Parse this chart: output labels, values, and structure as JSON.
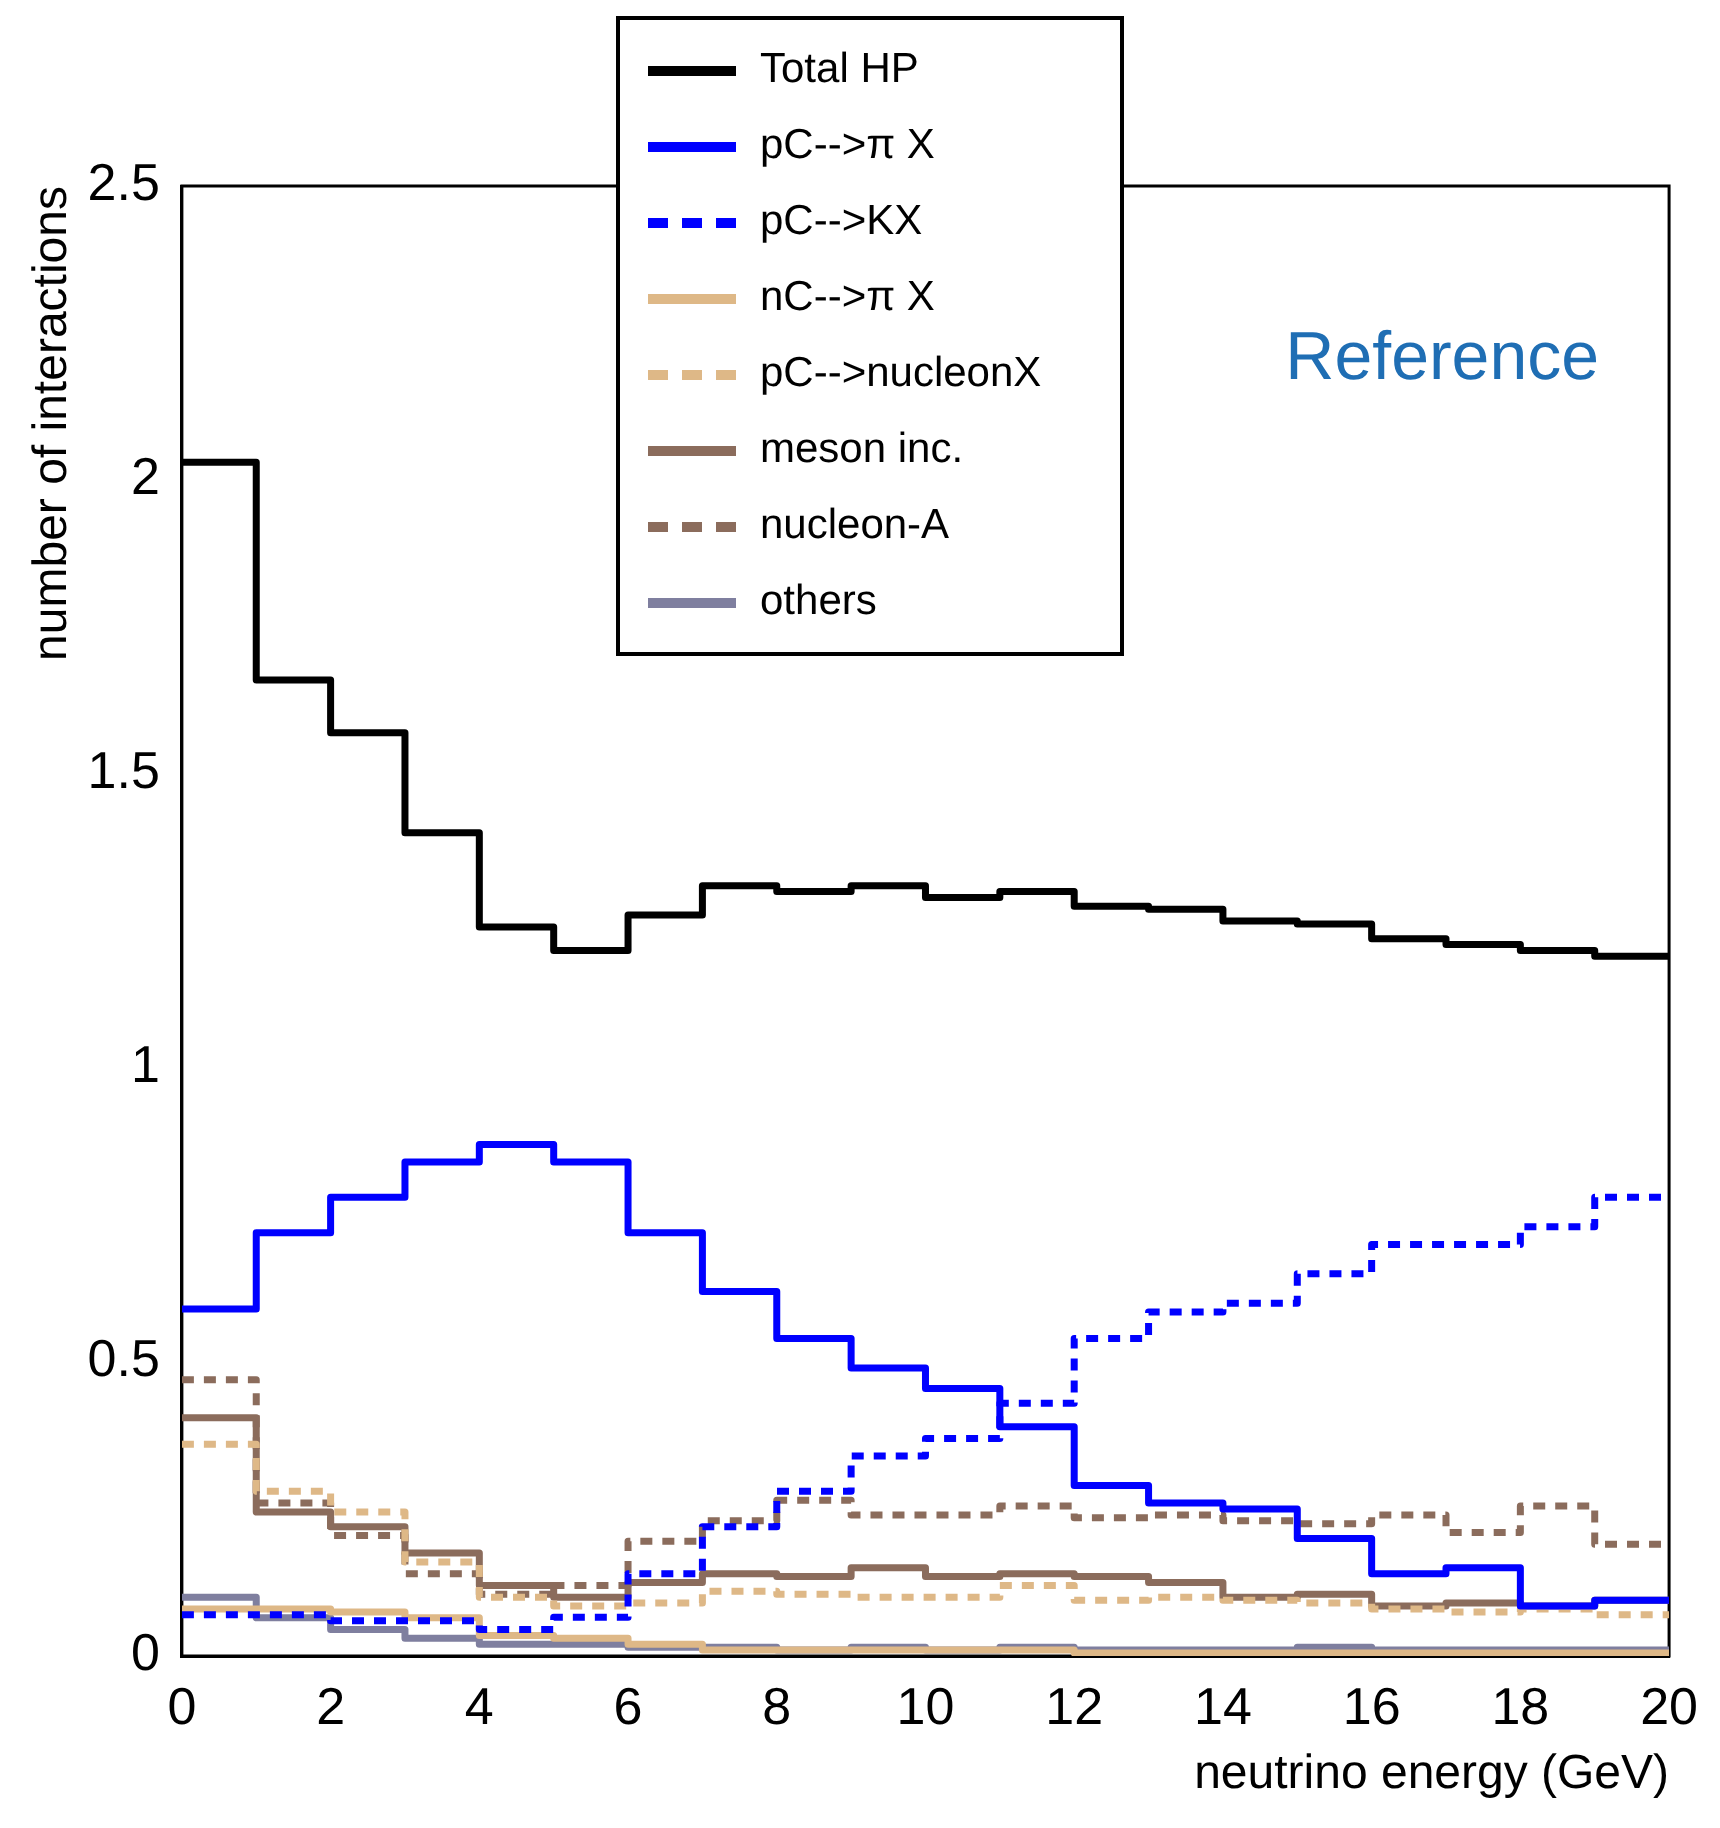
{
  "chart_data": {
    "type": "histogram",
    "xlabel": "neutrino energy (GeV)",
    "ylabel": "number of interactions",
    "annotations": [
      "Reference"
    ],
    "bins": [
      0,
      1,
      2,
      3,
      4,
      5,
      6,
      7,
      8,
      9,
      10,
      11,
      12,
      13,
      14,
      15,
      16,
      17,
      18,
      19,
      20
    ],
    "series": [
      {
        "name": "Total HP",
        "color": "#000000",
        "line_style": "solid",
        "values": [
          2.03,
          1.66,
          1.57,
          1.4,
          1.24,
          1.2,
          1.26,
          1.31,
          1.3,
          1.31,
          1.29,
          1.3,
          1.275,
          1.27,
          1.25,
          1.245,
          1.22,
          1.21,
          1.2,
          1.19
        ]
      },
      {
        "name": "pC-->π X",
        "color": "#0000ff",
        "line_style": "solid",
        "values": [
          0.59,
          0.72,
          0.78,
          0.84,
          0.87,
          0.84,
          0.72,
          0.62,
          0.54,
          0.49,
          0.455,
          0.39,
          0.29,
          0.26,
          0.25,
          0.2,
          0.14,
          0.15,
          0.085,
          0.095
        ]
      },
      {
        "name": "pC-->KX",
        "color": "#0000ff",
        "line_style": "dashed",
        "values": [
          0.07,
          0.07,
          0.06,
          0.06,
          0.045,
          0.066,
          0.14,
          0.22,
          0.28,
          0.34,
          0.37,
          0.43,
          0.54,
          0.585,
          0.6,
          0.65,
          0.7,
          0.7,
          0.73,
          0.78
        ]
      },
      {
        "name": "nC-->π X",
        "color": "#deb887",
        "line_style": "solid",
        "values": [
          0.08,
          0.08,
          0.075,
          0.065,
          0.035,
          0.03,
          0.02,
          0.01,
          0.01,
          0.01,
          0.01,
          0.01,
          0.005,
          0.005,
          0.005,
          0.005,
          0.005,
          0.005,
          0.005,
          0.005
        ]
      },
      {
        "name": "pC-->nucleonX",
        "color": "#deb887",
        "line_style": "dashed",
        "values": [
          0.36,
          0.28,
          0.245,
          0.16,
          0.1,
          0.085,
          0.09,
          0.11,
          0.105,
          0.1,
          0.1,
          0.12,
          0.095,
          0.1,
          0.095,
          0.09,
          0.08,
          0.075,
          0.08,
          0.07
        ]
      },
      {
        "name": "meson inc.",
        "color": "#8b6c5c",
        "line_style": "solid",
        "values": [
          0.405,
          0.245,
          0.22,
          0.175,
          0.12,
          0.1,
          0.125,
          0.14,
          0.135,
          0.15,
          0.135,
          0.14,
          0.135,
          0.125,
          0.1,
          0.105,
          0.085,
          0.09,
          0.085,
          0.095
        ]
      },
      {
        "name": "nucleon-A",
        "color": "#8b6c5c",
        "line_style": "dashed",
        "values": [
          0.47,
          0.26,
          0.205,
          0.14,
          0.105,
          0.12,
          0.195,
          0.23,
          0.265,
          0.24,
          0.24,
          0.255,
          0.235,
          0.24,
          0.23,
          0.225,
          0.24,
          0.21,
          0.255,
          0.19
        ]
      },
      {
        "name": "others",
        "color": "#7f7f9f",
        "line_style": "solid",
        "values": [
          0.1,
          0.065,
          0.045,
          0.03,
          0.02,
          0.02,
          0.015,
          0.015,
          0.01,
          0.015,
          0.01,
          0.015,
          0.01,
          0.01,
          0.01,
          0.015,
          0.01,
          0.01,
          0.01,
          0.01
        ]
      }
    ],
    "xlim": [
      0,
      20
    ],
    "xticks": [
      0,
      2,
      4,
      6,
      8,
      10,
      12,
      14,
      16,
      18,
      20
    ],
    "ylim": [
      0,
      2.5
    ],
    "yticks": [
      0,
      0.5,
      1,
      1.5,
      2,
      2.5
    ],
    "grid": false,
    "legend": "top"
  }
}
